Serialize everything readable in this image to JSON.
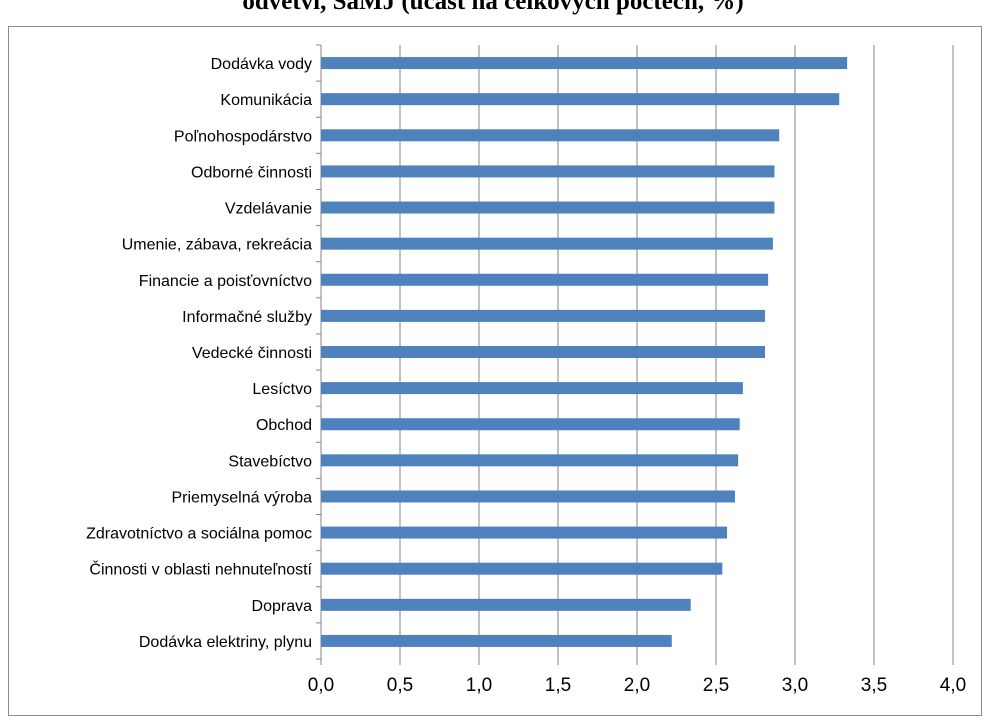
{
  "chart_data": {
    "type": "bar",
    "orientation": "horizontal",
    "title": "odvetví, SaMJ (účast na celkových počtech, %)",
    "xlabel": "",
    "ylabel": "",
    "xlim": [
      0,
      4.0
    ],
    "x_ticks": [
      "0,0",
      "0,5",
      "1,0",
      "1,5",
      "2,0",
      "2,5",
      "3,0",
      "3,5",
      "4,0"
    ],
    "x_tick_values": [
      0,
      0.5,
      1.0,
      1.5,
      2.0,
      2.5,
      3.0,
      3.5,
      4.0
    ],
    "grid": "vertical",
    "legend": "none",
    "bar_color": "#4f81bd",
    "grid_color": "#868686",
    "categories": [
      "Dodávka vody",
      "Komunikácia",
      "Poľnohospodárstvo",
      "Odborné činnosti",
      "Vzdelávanie",
      "Umenie, zábava, rekreácia",
      "Financie a poisťovníctvo",
      "Informačné služby",
      "Vedecké činnosti",
      "Lesíctvo",
      "Obchod",
      "Stavebíctvo",
      "Priemyselná výroba",
      "Zdravotníctvo a sociálna pomoc",
      "Činnosti v oblasti nehnuteľností",
      "Doprava",
      "Dodávka elektriny, plynu"
    ],
    "values": [
      3.33,
      3.28,
      2.9,
      2.87,
      2.87,
      2.86,
      2.83,
      2.81,
      2.81,
      2.67,
      2.65,
      2.64,
      2.62,
      2.57,
      2.54,
      2.34,
      2.22
    ]
  }
}
